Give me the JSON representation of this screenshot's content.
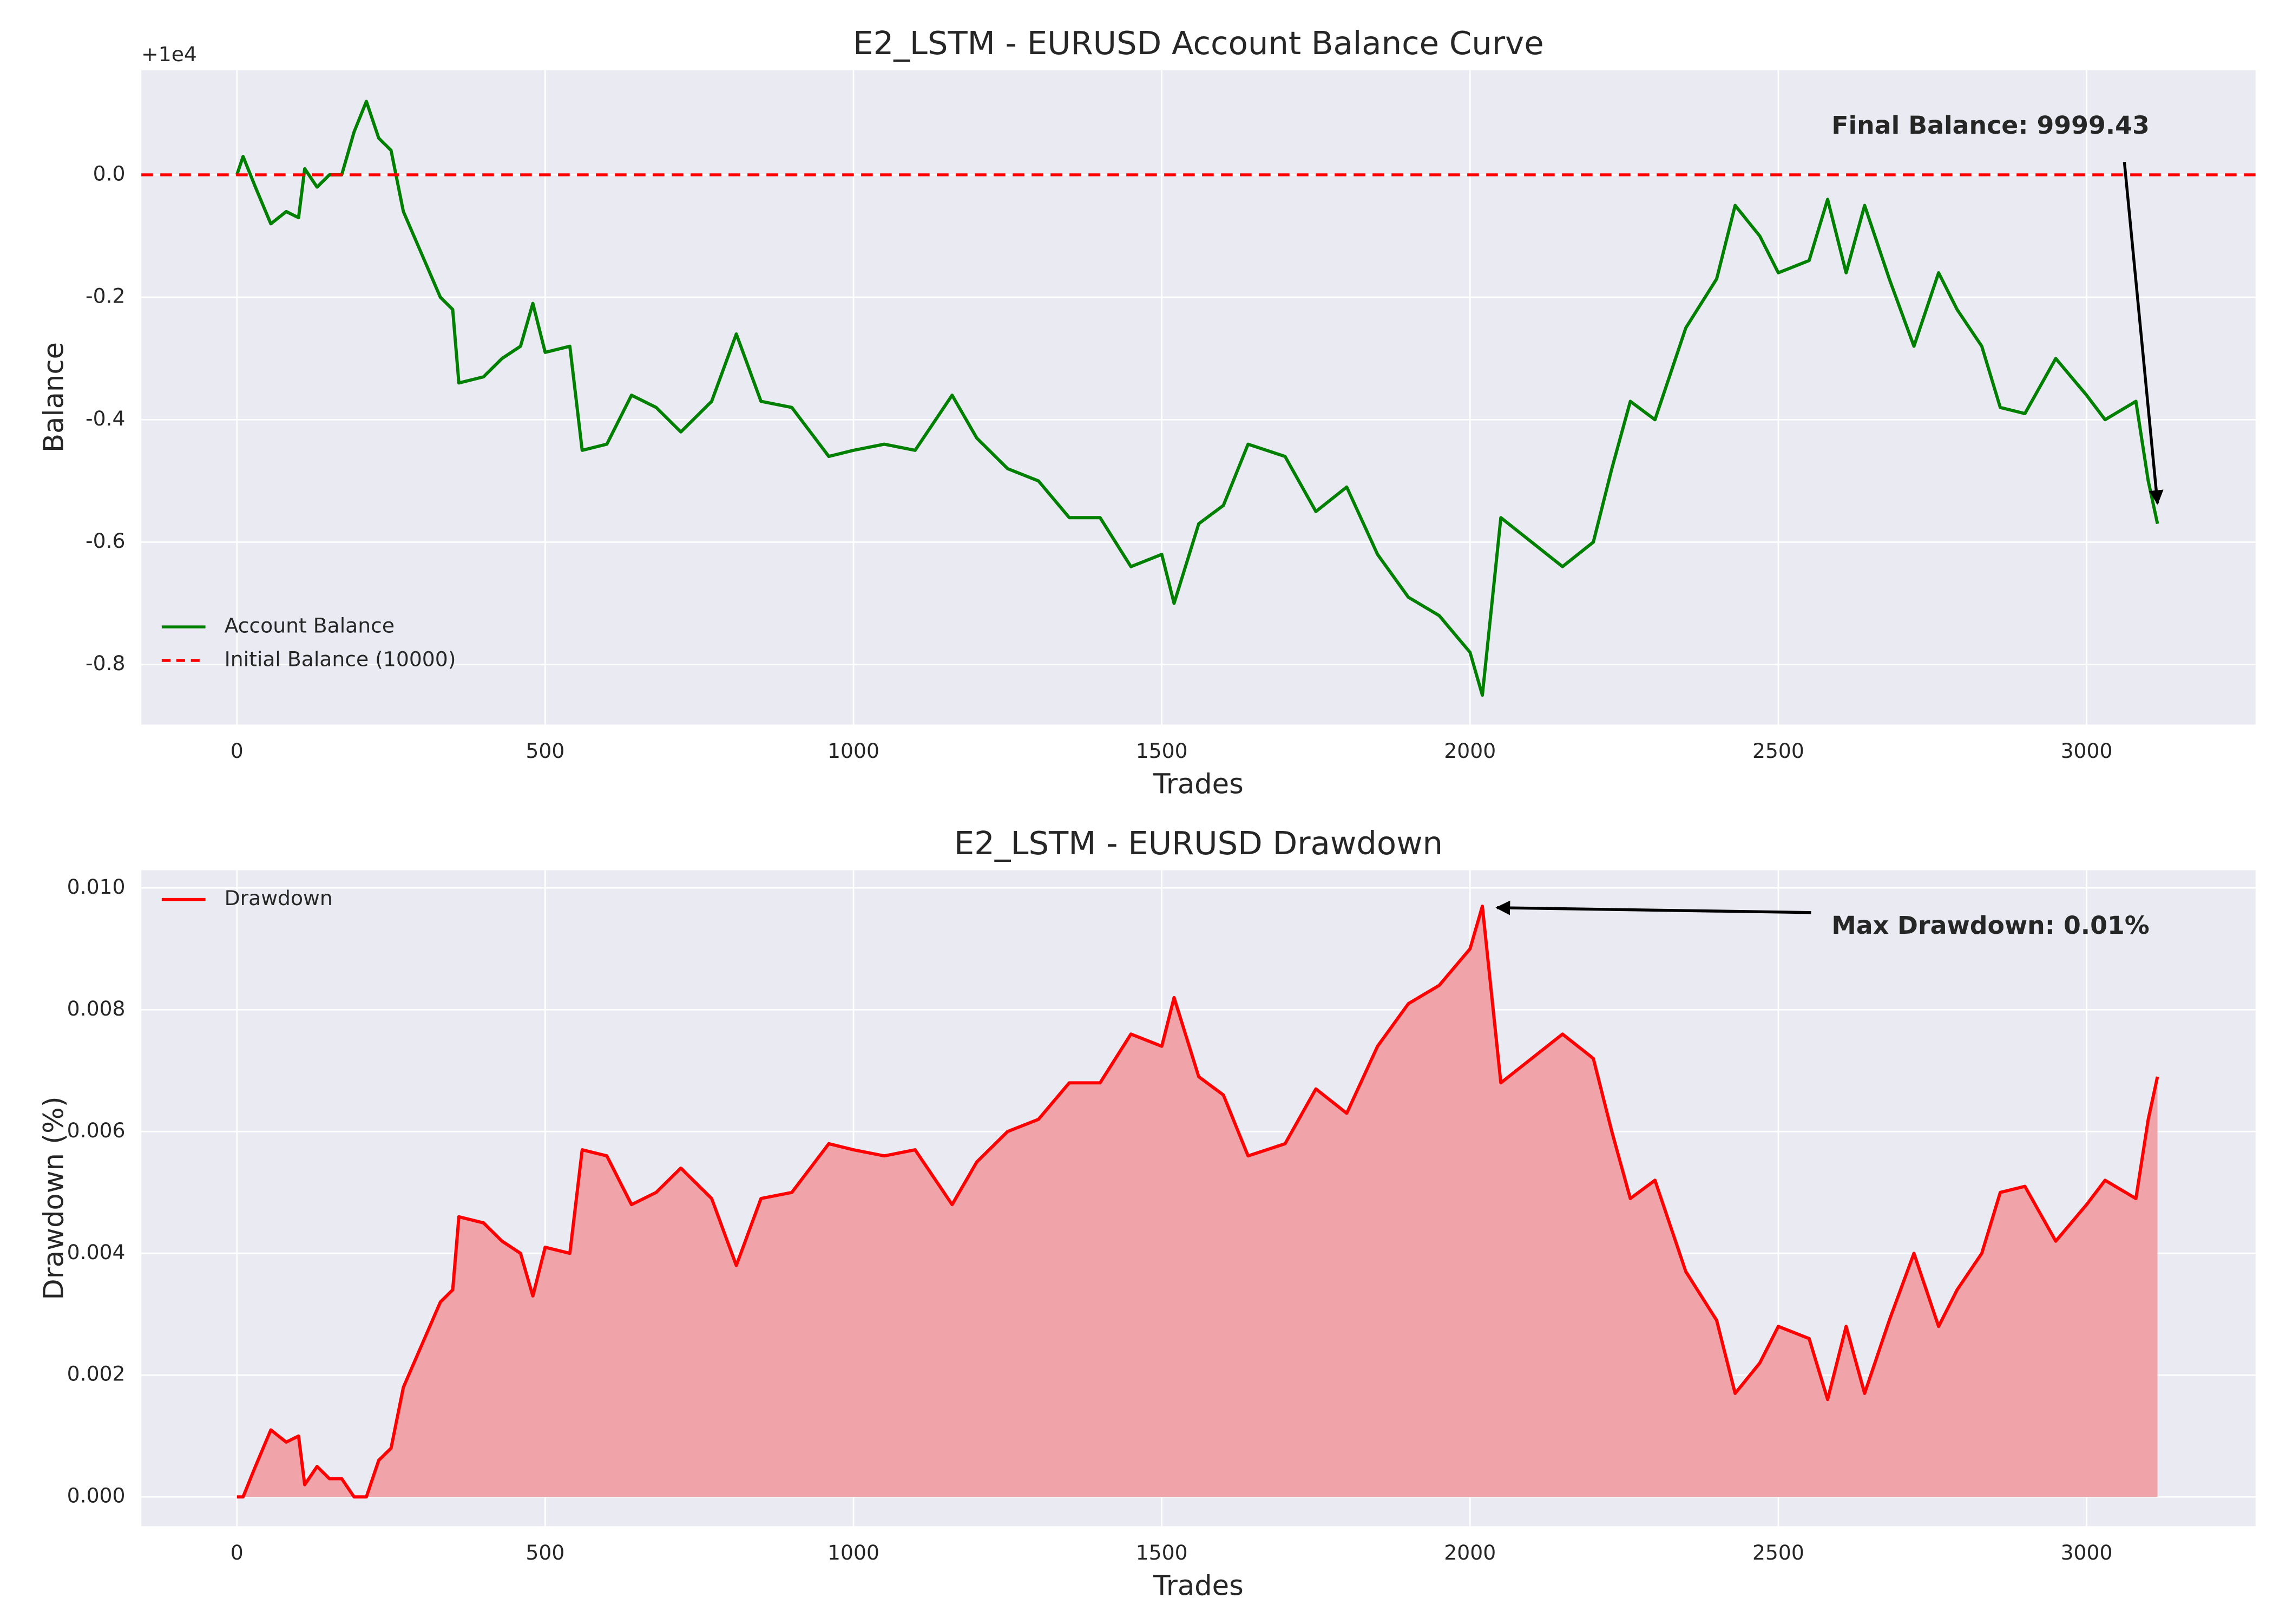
{
  "chart_data": [
    {
      "type": "line",
      "title": "E2_LSTM - EURUSD Account Balance Curve",
      "xlabel": "Trades",
      "ylabel": "Balance",
      "y_offset_label": "+1e4",
      "x": [
        0,
        10,
        30,
        55,
        80,
        100,
        110,
        130,
        150,
        170,
        190,
        210,
        230,
        250,
        270,
        300,
        330,
        350,
        360,
        400,
        430,
        460,
        480,
        500,
        540,
        560,
        600,
        640,
        680,
        720,
        770,
        810,
        850,
        900,
        960,
        1000,
        1050,
        1100,
        1160,
        1200,
        1250,
        1300,
        1350,
        1400,
        1450,
        1500,
        1520,
        1560,
        1600,
        1640,
        1700,
        1750,
        1800,
        1850,
        1900,
        1950,
        2000,
        2020,
        2050,
        2100,
        2150,
        2200,
        2230,
        2260,
        2300,
        2350,
        2400,
        2430,
        2470,
        2500,
        2550,
        2580,
        2610,
        2640,
        2680,
        2720,
        2760,
        2790,
        2830,
        2860,
        2900,
        2950,
        3000,
        3030,
        3080,
        3100,
        3115
      ],
      "series": [
        {
          "name": "Account Balance",
          "color": "#008000",
          "values": [
            0.0,
            0.03,
            -0.02,
            -0.08,
            -0.06,
            -0.07,
            0.01,
            -0.02,
            0.0,
            0.0,
            0.07,
            0.12,
            0.06,
            0.04,
            -0.06,
            -0.13,
            -0.2,
            -0.22,
            -0.34,
            -0.33,
            -0.3,
            -0.28,
            -0.21,
            -0.29,
            -0.28,
            -0.45,
            -0.44,
            -0.36,
            -0.38,
            -0.42,
            -0.37,
            -0.26,
            -0.37,
            -0.38,
            -0.46,
            -0.45,
            -0.44,
            -0.45,
            -0.36,
            -0.43,
            -0.48,
            -0.5,
            -0.56,
            -0.56,
            -0.64,
            -0.62,
            -0.7,
            -0.57,
            -0.54,
            -0.44,
            -0.46,
            -0.55,
            -0.51,
            -0.62,
            -0.69,
            -0.72,
            -0.78,
            -0.85,
            -0.56,
            -0.6,
            -0.64,
            -0.6,
            -0.48,
            -0.37,
            -0.4,
            -0.25,
            -0.17,
            -0.05,
            -0.1,
            -0.16,
            -0.14,
            -0.04,
            -0.16,
            -0.05,
            -0.17,
            -0.28,
            -0.16,
            -0.22,
            -0.28,
            -0.38,
            -0.39,
            -0.3,
            -0.36,
            -0.4,
            -0.37,
            -0.5,
            -0.57
          ]
        }
      ],
      "hlines": [
        {
          "name": "Initial Balance (10000)",
          "value": 0,
          "color": "#ff0000",
          "style": "dashed"
        }
      ],
      "annotations": [
        {
          "text": "Final Balance: 9999.43"
        }
      ],
      "xlim": [
        -155,
        3274
      ],
      "xticks": [
        0,
        500,
        1000,
        1500,
        2000,
        2500,
        3000
      ],
      "ylim": [
        -0.898,
        0.171
      ],
      "yticks": [
        {
          "value": -0.8,
          "label": "-0.8"
        },
        {
          "value": -0.6,
          "label": "-0.6"
        },
        {
          "value": -0.4,
          "label": "-0.4"
        },
        {
          "value": -0.2,
          "label": "-0.2"
        },
        {
          "value": 0,
          "label": "0.0"
        }
      ],
      "grid": true,
      "legend": "lower left"
    },
    {
      "type": "area",
      "title": "E2_LSTM - EURUSD Drawdown",
      "xlabel": "Trades",
      "ylabel": "Drawdown (%)",
      "x": [
        0,
        10,
        30,
        55,
        80,
        100,
        110,
        130,
        150,
        170,
        190,
        210,
        230,
        250,
        270,
        300,
        330,
        350,
        360,
        400,
        430,
        460,
        480,
        500,
        540,
        560,
        600,
        640,
        680,
        720,
        770,
        810,
        850,
        900,
        960,
        1000,
        1050,
        1100,
        1160,
        1200,
        1250,
        1300,
        1350,
        1400,
        1450,
        1500,
        1520,
        1560,
        1600,
        1640,
        1700,
        1750,
        1800,
        1850,
        1900,
        1950,
        2000,
        2020,
        2050,
        2100,
        2150,
        2200,
        2230,
        2260,
        2300,
        2350,
        2400,
        2430,
        2470,
        2500,
        2550,
        2580,
        2610,
        2640,
        2680,
        2720,
        2760,
        2790,
        2830,
        2860,
        2900,
        2950,
        3000,
        3030,
        3080,
        3100,
        3115
      ],
      "series": [
        {
          "name": "Drawdown",
          "color": "#ff0000",
          "fill_color": "#f0a3a8",
          "values": [
            0,
            0,
            0.0005,
            0.0011,
            0.0009,
            0.001,
            0.0002,
            0.0005,
            0.0003,
            0.0003,
            0,
            0,
            0.0006,
            0.0008,
            0.0018,
            0.0025,
            0.0032,
            0.0034,
            0.0046,
            0.0045,
            0.0042,
            0.004,
            0.0033,
            0.0041,
            0.004,
            0.0057,
            0.0056,
            0.0048,
            0.005,
            0.0054,
            0.0049,
            0.0038,
            0.0049,
            0.005,
            0.0058,
            0.0057,
            0.0056,
            0.0057,
            0.0048,
            0.0055,
            0.006,
            0.0062,
            0.0068,
            0.0068,
            0.0076,
            0.0074,
            0.0082,
            0.0069,
            0.0066,
            0.0056,
            0.0058,
            0.0067,
            0.0063,
            0.0074,
            0.0081,
            0.0084,
            0.009,
            0.0097,
            0.0068,
            0.0072,
            0.0076,
            0.0072,
            0.006,
            0.0049,
            0.0052,
            0.0037,
            0.0029,
            0.0017,
            0.0022,
            0.0028,
            0.0026,
            0.0016,
            0.0028,
            0.0017,
            0.0029,
            0.004,
            0.0028,
            0.0034,
            0.004,
            0.005,
            0.0051,
            0.0042,
            0.0048,
            0.0052,
            0.0049,
            0.0062,
            0.0069
          ]
        }
      ],
      "hlines": [],
      "annotations": [
        {
          "text": "Max Drawdown: 0.01%"
        }
      ],
      "xlim": [
        -155,
        3274
      ],
      "xticks": [
        0,
        500,
        1000,
        1500,
        2000,
        2500,
        3000
      ],
      "ylim": [
        -0.00048,
        0.01029
      ],
      "yticks": [
        {
          "value": 0,
          "label": "0.000"
        },
        {
          "value": 0.002,
          "label": "0.002"
        },
        {
          "value": 0.004,
          "label": "0.004"
        },
        {
          "value": 0.006,
          "label": "0.006"
        },
        {
          "value": 0.008,
          "label": "0.008"
        },
        {
          "value": 0.01,
          "label": "0.010"
        }
      ],
      "grid": true,
      "legend": "upper left"
    }
  ]
}
